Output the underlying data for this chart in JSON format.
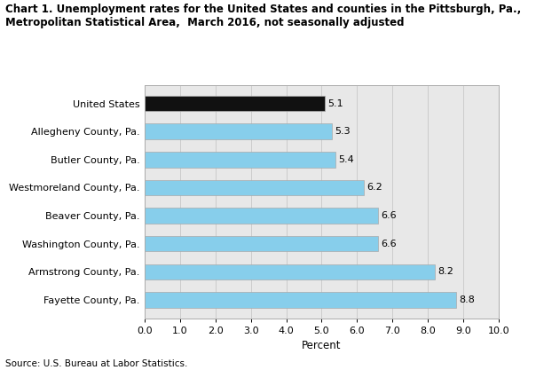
{
  "title_line1": "Chart 1. Unemployment rates for the United States and counties in the Pittsburgh, Pa.,",
  "title_line2": "Metropolitan Statistical Area,  March 2016, not seasonally adjusted",
  "categories": [
    "United States",
    "Allegheny County, Pa.",
    "Butler County, Pa.",
    "Westmoreland County, Pa.",
    "Beaver County, Pa.",
    "Washington County, Pa.",
    "Armstrong County, Pa.",
    "Fayette County, Pa."
  ],
  "values": [
    5.1,
    5.3,
    5.4,
    6.2,
    6.6,
    6.6,
    8.2,
    8.8
  ],
  "bar_colors": [
    "#111111",
    "#87CEEB",
    "#87CEEB",
    "#87CEEB",
    "#87CEEB",
    "#87CEEB",
    "#87CEEB",
    "#87CEEB"
  ],
  "xlabel": "Percent",
  "xlim": [
    0.0,
    10.0
  ],
  "xticks": [
    0.0,
    1.0,
    2.0,
    3.0,
    4.0,
    5.0,
    6.0,
    7.0,
    8.0,
    9.0,
    10.0
  ],
  "source": "Source: U.S. Bureau at Labor Statistics.",
  "bar_edge_color": "#aaaaaa",
  "grid_color": "#cccccc",
  "bg_color": "#ffffff",
  "plot_bg_color": "#e8e8e8",
  "bar_height": 0.55
}
